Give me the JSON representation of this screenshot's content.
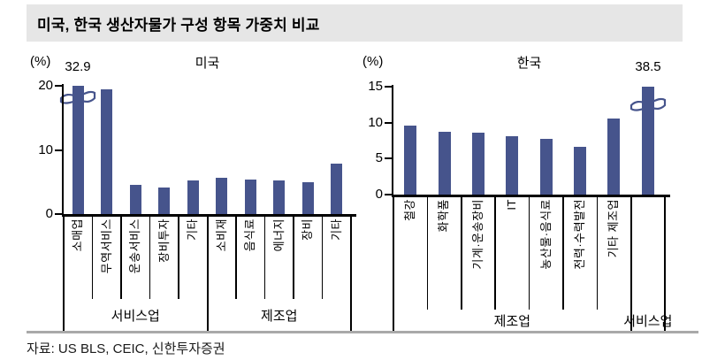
{
  "title": "미국, 한국 생산자물가 구성 항목 가중치 비교",
  "source": "자료: US BLS, CEIC, 신한투자증권",
  "colors": {
    "bar": "#46548C",
    "title_band_bg": "#E6E6E6",
    "axis": "#000000",
    "bottom_rule": "#A9A9A9"
  },
  "chart_data": [
    {
      "type": "bar",
      "title": "미국",
      "unit_label": "(%)",
      "ylim": [
        0,
        20
      ],
      "yticks": [
        0,
        10,
        20
      ],
      "grid": false,
      "categories": [
        "소매업",
        "무역서비스",
        "운송서비스",
        "장비투자",
        "기타",
        "소비재",
        "음식료",
        "에너지",
        "장비",
        "기타"
      ],
      "values": [
        32.9,
        19.5,
        4.6,
        4.2,
        5.3,
        5.6,
        5.4,
        5.2,
        4.9,
        7.9
      ],
      "groups": [
        {
          "label": "서비스업",
          "span": 5
        },
        {
          "label": "제조업",
          "span": 5
        }
      ],
      "axis_break": {
        "bar_index": 0,
        "label": "32.9"
      }
    },
    {
      "type": "bar",
      "title": "한국",
      "unit_label": "(%)",
      "ylim": [
        0,
        15
      ],
      "yticks": [
        0,
        5,
        10,
        15
      ],
      "grid": false,
      "categories": [
        "철강",
        "화학품",
        "기계·운송장비",
        "IT",
        "농산물·음식료",
        "전력·수력발전",
        "기타 제조업",
        ""
      ],
      "values": [
        9.6,
        8.7,
        8.6,
        8.1,
        7.7,
        6.7,
        10.6,
        38.5
      ],
      "groups": [
        {
          "label": "제조업",
          "span": 7
        },
        {
          "label": "서비스업",
          "span": 1
        }
      ],
      "axis_break": {
        "bar_index": 7,
        "label": "38.5"
      }
    }
  ]
}
